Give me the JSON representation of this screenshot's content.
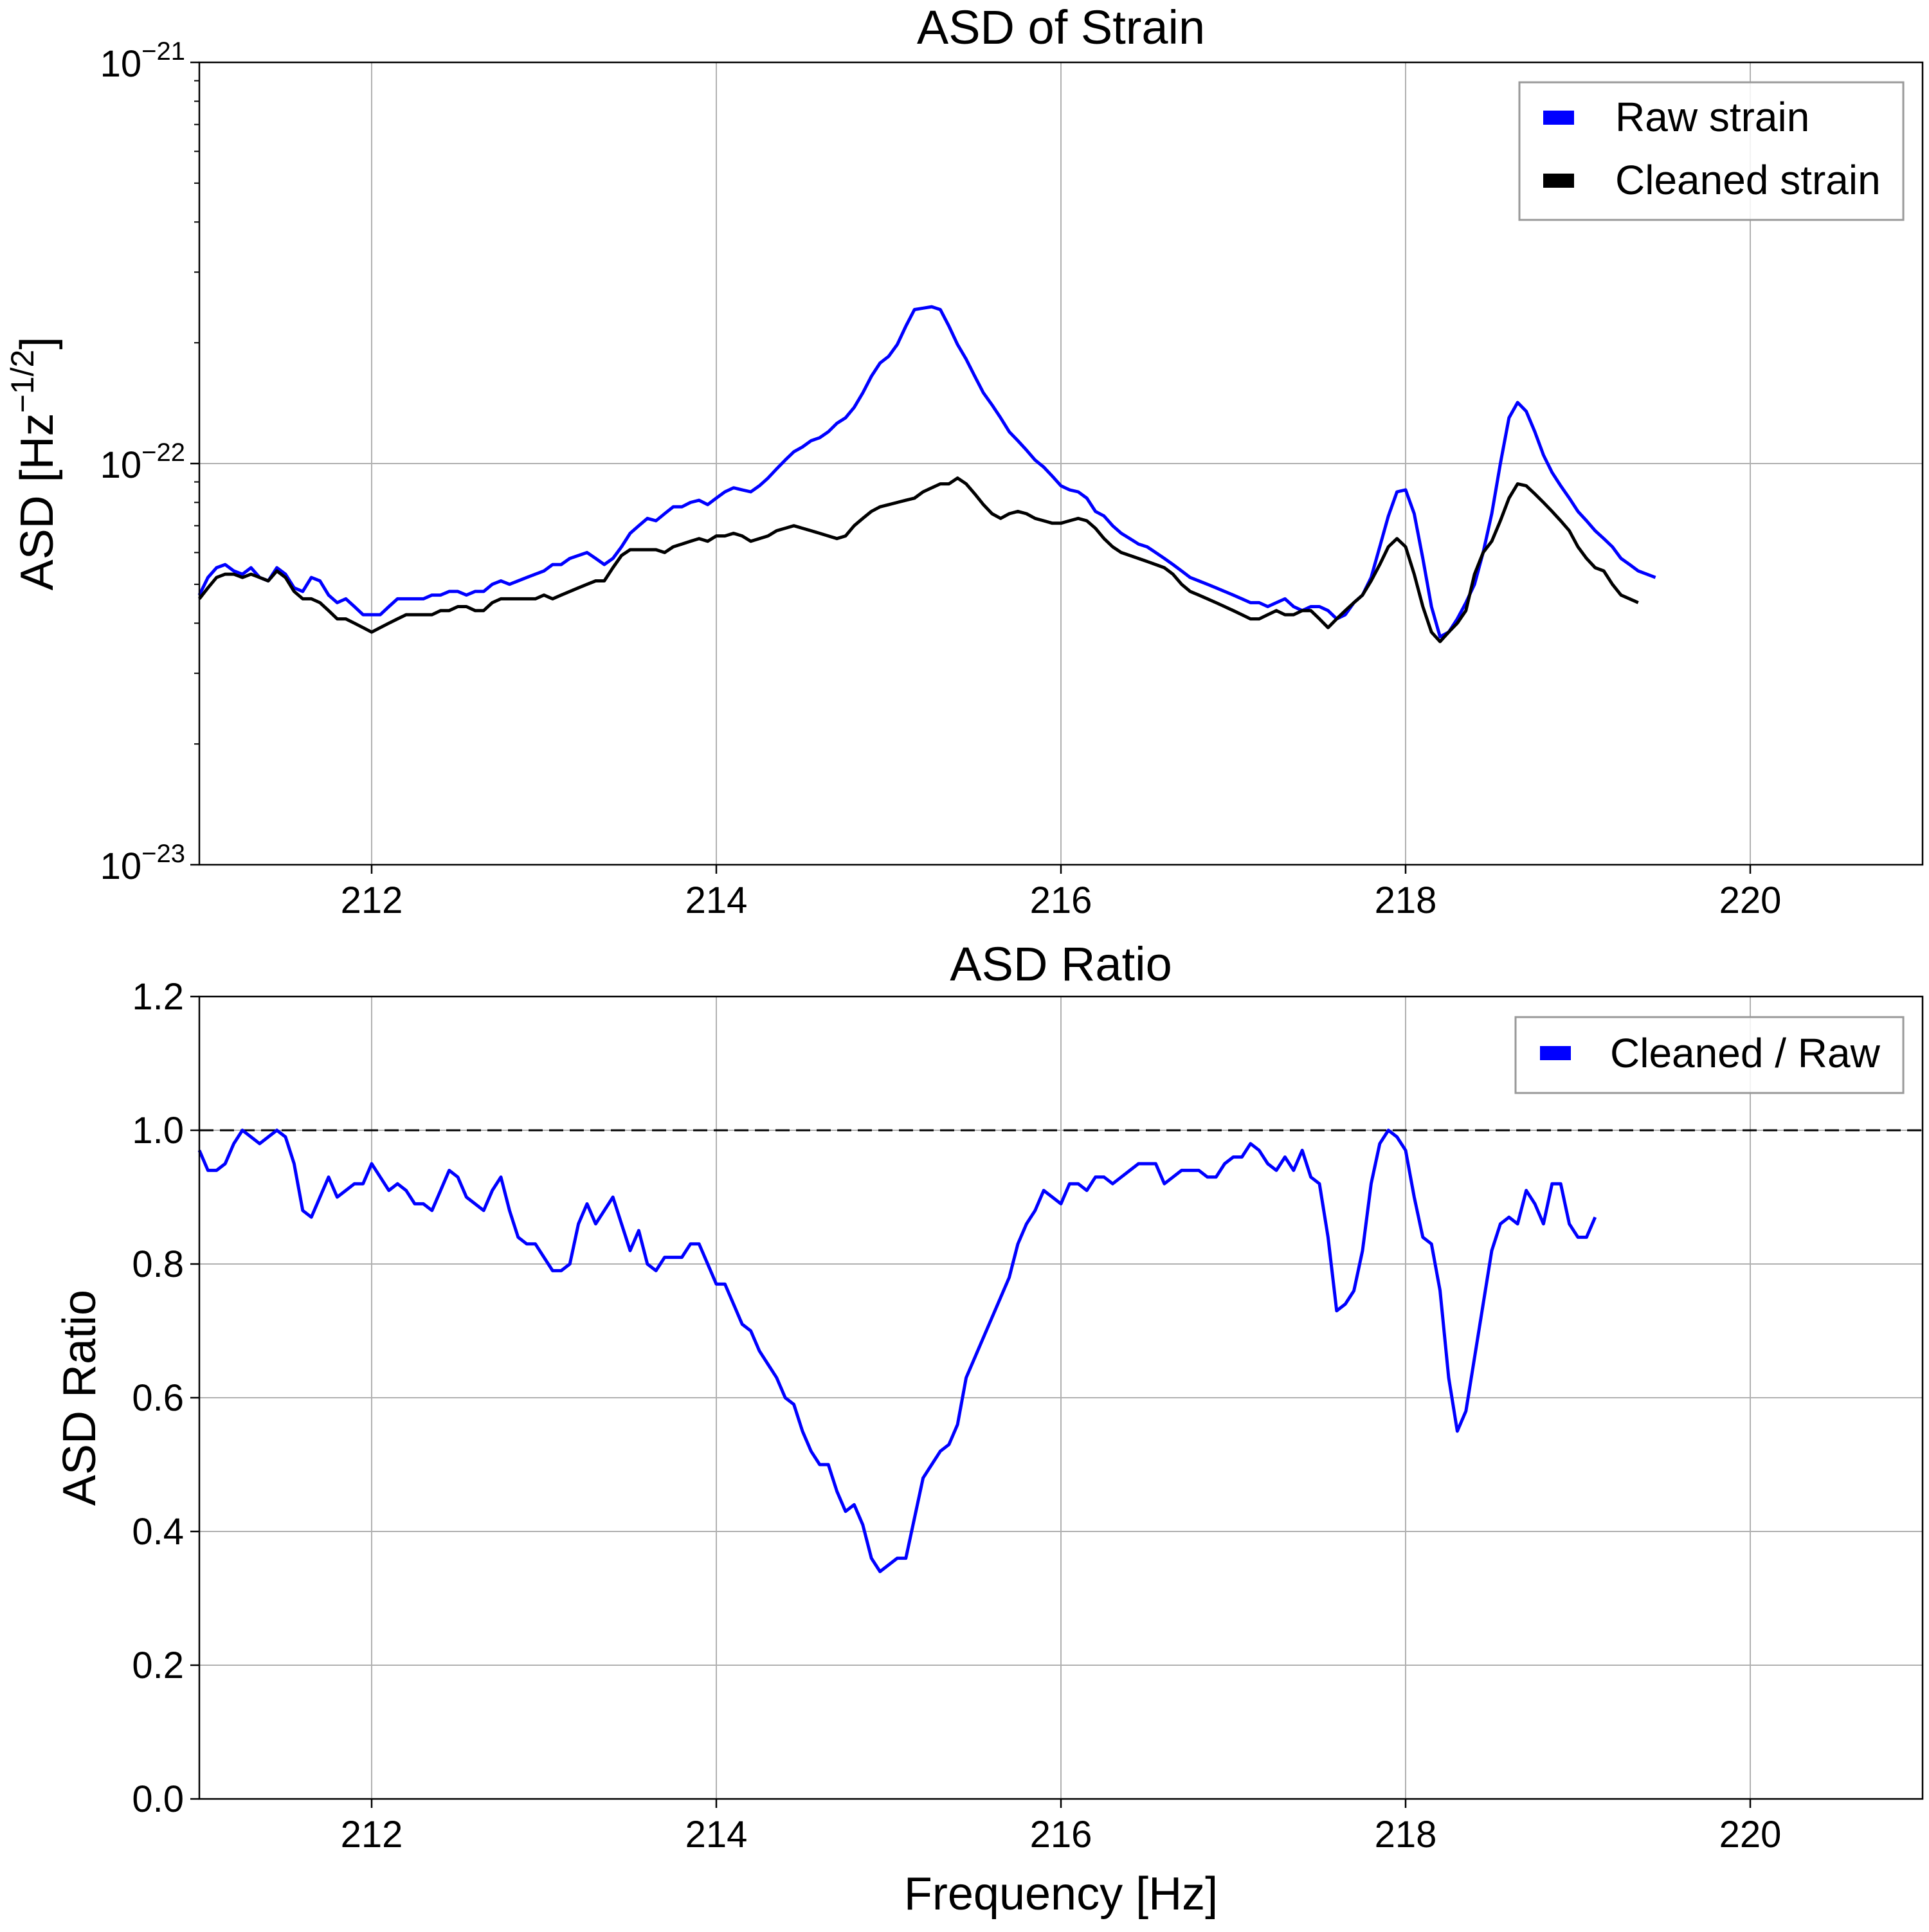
{
  "chart_data": [
    {
      "type": "line",
      "title": "ASD of Strain",
      "xlabel": "",
      "ylabel": "ASD [Hz",
      "ylabel_sup": "−1/2",
      "ylabel_close": "]",
      "xlim": [
        211,
        221
      ],
      "ylim": [
        1e-23,
        1e-21
      ],
      "yscale": "log",
      "grid": true,
      "legend_position": "top-right",
      "x_ticks": [
        212,
        214,
        216,
        218,
        220
      ],
      "y_ticks": [
        {
          "value": 1e-21,
          "base": "10",
          "exp": "−21"
        },
        {
          "value": 1e-22,
          "base": "10",
          "exp": "−22"
        },
        {
          "value": 1e-23,
          "base": "10",
          "exp": "−23"
        }
      ],
      "x_start": 211.0,
      "x_step": 0.05,
      "series": [
        {
          "name": "Raw strain",
          "color": "#0000ff",
          "values": [
            4.7e-23,
            5.2e-23,
            5.5e-23,
            5.6e-23,
            5.4e-23,
            5.3e-23,
            5.5e-23,
            5.2e-23,
            5.1e-23,
            5.5e-23,
            5.3e-23,
            4.9e-23,
            4.8e-23,
            5.2e-23,
            5.1e-23,
            4.7e-23,
            4.5e-23,
            4.6e-23,
            4.4e-23,
            4.2e-23,
            4.2e-23,
            4.2e-23,
            4.4e-23,
            4.6e-23,
            4.6e-23,
            4.6e-23,
            4.6e-23,
            4.7e-23,
            4.7e-23,
            4.8e-23,
            4.8e-23,
            4.7e-23,
            4.8e-23,
            4.8e-23,
            5e-23,
            5.1e-23,
            5e-23,
            5.1e-23,
            5.2e-23,
            5.3e-23,
            5.4e-23,
            5.6e-23,
            5.6e-23,
            5.8e-23,
            5.9e-23,
            6e-23,
            5.8e-23,
            5.6e-23,
            5.8e-23,
            6.2e-23,
            6.7e-23,
            7e-23,
            7.3e-23,
            7.2e-23,
            7.5e-23,
            7.8e-23,
            7.8e-23,
            8e-23,
            8.1e-23,
            7.9e-23,
            8.2e-23,
            8.5e-23,
            8.7e-23,
            8.6e-23,
            8.5e-23,
            8.8e-23,
            9.2e-23,
            9.7e-23,
            1.02e-22,
            1.07e-22,
            1.1e-22,
            1.14e-22,
            1.16e-22,
            1.2e-22,
            1.26e-22,
            1.3e-22,
            1.38e-22,
            1.5e-22,
            1.65e-22,
            1.78e-22,
            1.85e-22,
            1.98e-22,
            2.2e-22,
            2.42e-22,
            2.44e-22,
            2.46e-22,
            2.42e-22,
            2.2e-22,
            1.98e-22,
            1.82e-22,
            1.65e-22,
            1.5e-22,
            1.4e-22,
            1.3e-22,
            1.2e-22,
            1.14e-22,
            1.08e-22,
            1.02e-22,
            9.8e-23,
            9.3e-23,
            8.8e-23,
            8.6e-23,
            8.5e-23,
            8.2e-23,
            7.6e-23,
            7.4e-23,
            7e-23,
            6.7e-23,
            6.5e-23,
            6.3e-23,
            6.2e-23,
            6e-23,
            5.8e-23,
            5.6e-23,
            5.4e-23,
            5.2e-23,
            5.1e-23,
            5e-23,
            4.9e-23,
            4.8e-23,
            4.7e-23,
            4.6e-23,
            4.5e-23,
            4.5e-23,
            4.4e-23,
            4.5e-23,
            4.6e-23,
            4.4e-23,
            4.3e-23,
            4.4e-23,
            4.4e-23,
            4.3e-23,
            4.1e-23,
            4.2e-23,
            4.5e-23,
            4.7e-23,
            5.2e-23,
            6.2e-23,
            7.4e-23,
            8.5e-23,
            8.6e-23,
            7.5e-23,
            5.8e-23,
            4.4e-23,
            3.7e-23,
            3.8e-23,
            4.1e-23,
            4.5e-23,
            5e-23,
            6e-23,
            7.5e-23,
            1e-22,
            1.3e-22,
            1.42e-22,
            1.35e-22,
            1.2e-22,
            1.05e-22,
            9.5e-23,
            8.8e-23,
            8.2e-23,
            7.6e-23,
            7.2e-23,
            6.8e-23,
            6.5e-23,
            6.2e-23,
            5.8e-23,
            5.6e-23,
            5.4e-23,
            5.3e-23,
            5.2e-23
          ]
        },
        {
          "name": "Cleaned strain",
          "color": "#000000",
          "values": [
            4.6e-23,
            4.9e-23,
            5.2e-23,
            5.3e-23,
            5.3e-23,
            5.2e-23,
            5.3e-23,
            5.2e-23,
            5.1e-23,
            5.4e-23,
            5.2e-23,
            4.8e-23,
            4.6e-23,
            4.6e-23,
            4.5e-23,
            4.3e-23,
            4.1e-23,
            4.1e-23,
            4e-23,
            3.9e-23,
            3.8e-23,
            3.9e-23,
            4e-23,
            4.1e-23,
            4.2e-23,
            4.2e-23,
            4.2e-23,
            4.2e-23,
            4.3e-23,
            4.3e-23,
            4.4e-23,
            4.4e-23,
            4.3e-23,
            4.3e-23,
            4.5e-23,
            4.6e-23,
            4.6e-23,
            4.6e-23,
            4.6e-23,
            4.6e-23,
            4.7e-23,
            4.6e-23,
            4.7e-23,
            4.8e-23,
            4.9e-23,
            5e-23,
            5.1e-23,
            5.1e-23,
            5.5e-23,
            5.9e-23,
            6.1e-23,
            6.1e-23,
            6.1e-23,
            6.1e-23,
            6e-23,
            6.2e-23,
            6.3e-23,
            6.4e-23,
            6.5e-23,
            6.4e-23,
            6.6e-23,
            6.6e-23,
            6.7e-23,
            6.6e-23,
            6.4e-23,
            6.5e-23,
            6.6e-23,
            6.8e-23,
            6.9e-23,
            7e-23,
            6.9e-23,
            6.8e-23,
            6.7e-23,
            6.6e-23,
            6.5e-23,
            6.6e-23,
            7e-23,
            7.3e-23,
            7.6e-23,
            7.8e-23,
            7.9e-23,
            8e-23,
            8.1e-23,
            8.2e-23,
            8.5e-23,
            8.7e-23,
            8.9e-23,
            8.9e-23,
            9.2e-23,
            8.9e-23,
            8.4e-23,
            7.9e-23,
            7.5e-23,
            7.3e-23,
            7.5e-23,
            7.6e-23,
            7.5e-23,
            7.3e-23,
            7.2e-23,
            7.1e-23,
            7.1e-23,
            7.2e-23,
            7.3e-23,
            7.2e-23,
            6.9e-23,
            6.5e-23,
            6.2e-23,
            6e-23,
            5.9e-23,
            5.8e-23,
            5.7e-23,
            5.6e-23,
            5.5e-23,
            5.3e-23,
            5e-23,
            4.8e-23,
            4.7e-23,
            4.6e-23,
            4.5e-23,
            4.4e-23,
            4.3e-23,
            4.2e-23,
            4.1e-23,
            4.1e-23,
            4.2e-23,
            4.3e-23,
            4.2e-23,
            4.2e-23,
            4.3e-23,
            4.3e-23,
            4.1e-23,
            3.9e-23,
            4.1e-23,
            4.3e-23,
            4.5e-23,
            4.7e-23,
            5.1e-23,
            5.6e-23,
            6.2e-23,
            6.5e-23,
            6.2e-23,
            5.3e-23,
            4.4e-23,
            3.8e-23,
            3.6e-23,
            3.8e-23,
            4e-23,
            4.3e-23,
            5.3e-23,
            6e-23,
            6.4e-23,
            7.2e-23,
            8.2e-23,
            8.9e-23,
            8.8e-23,
            8.4e-23,
            8e-23,
            7.6e-23,
            7.2e-23,
            6.8e-23,
            6.2e-23,
            5.8e-23,
            5.5e-23,
            5.4e-23,
            5e-23,
            4.7e-23,
            4.6e-23,
            4.5e-23
          ]
        }
      ]
    },
    {
      "type": "line",
      "title": "ASD Ratio",
      "xlabel": "Frequency [Hz]",
      "ylabel": "ASD Ratio",
      "xlim": [
        211,
        221
      ],
      "ylim": [
        0.0,
        1.2
      ],
      "grid": true,
      "legend_position": "top-right",
      "x_ticks": [
        212,
        214,
        216,
        218,
        220
      ],
      "y_ticks": [
        "0.0",
        "0.2",
        "0.4",
        "0.6",
        "0.8",
        "1.0",
        "1.2"
      ],
      "reference_line": {
        "y": 1.0,
        "style": "dashed",
        "color": "#000000"
      },
      "x_start": 211.0,
      "x_step": 0.05,
      "series": [
        {
          "name": "Cleaned / Raw",
          "color": "#0000ff",
          "values": [
            0.97,
            0.94,
            0.94,
            0.95,
            0.98,
            1.0,
            0.99,
            0.98,
            0.99,
            1.0,
            0.99,
            0.95,
            0.88,
            0.87,
            0.9,
            0.93,
            0.9,
            0.91,
            0.92,
            0.92,
            0.95,
            0.93,
            0.91,
            0.92,
            0.91,
            0.89,
            0.89,
            0.88,
            0.91,
            0.94,
            0.93,
            0.9,
            0.89,
            0.88,
            0.91,
            0.93,
            0.88,
            0.84,
            0.83,
            0.83,
            0.81,
            0.79,
            0.79,
            0.8,
            0.86,
            0.89,
            0.86,
            0.88,
            0.9,
            0.86,
            0.82,
            0.85,
            0.8,
            0.79,
            0.81,
            0.81,
            0.81,
            0.83,
            0.83,
            0.8,
            0.77,
            0.77,
            0.74,
            0.71,
            0.7,
            0.67,
            0.65,
            0.63,
            0.6,
            0.59,
            0.55,
            0.52,
            0.5,
            0.5,
            0.46,
            0.43,
            0.44,
            0.41,
            0.36,
            0.34,
            0.35,
            0.36,
            0.36,
            0.42,
            0.48,
            0.5,
            0.52,
            0.53,
            0.56,
            0.63,
            0.66,
            0.69,
            0.72,
            0.75,
            0.78,
            0.83,
            0.86,
            0.88,
            0.91,
            0.9,
            0.89,
            0.92,
            0.92,
            0.91,
            0.93,
            0.93,
            0.92,
            0.93,
            0.94,
            0.95,
            0.95,
            0.95,
            0.92,
            0.93,
            0.94,
            0.94,
            0.94,
            0.93,
            0.93,
            0.95,
            0.96,
            0.96,
            0.98,
            0.97,
            0.95,
            0.94,
            0.96,
            0.94,
            0.97,
            0.93,
            0.92,
            0.84,
            0.73,
            0.74,
            0.76,
            0.82,
            0.92,
            0.98,
            1.0,
            0.99,
            0.97,
            0.9,
            0.84,
            0.83,
            0.76,
            0.63,
            0.55,
            0.58,
            0.66,
            0.74,
            0.82,
            0.86,
            0.87,
            0.86,
            0.91,
            0.89,
            0.86,
            0.92,
            0.92,
            0.86,
            0.84,
            0.84,
            0.87
          ]
        }
      ]
    }
  ]
}
